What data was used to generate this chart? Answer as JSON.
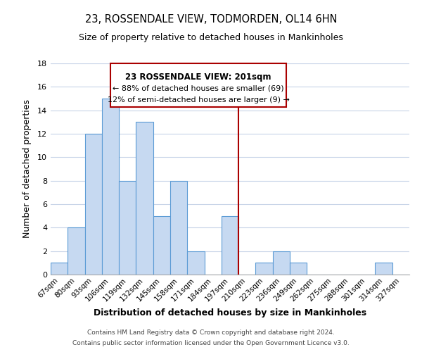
{
  "title": "23, ROSSENDALE VIEW, TODMORDEN, OL14 6HN",
  "subtitle": "Size of property relative to detached houses in Mankinholes",
  "xlabel": "Distribution of detached houses by size in Mankinholes",
  "ylabel": "Number of detached properties",
  "bin_labels": [
    "67sqm",
    "80sqm",
    "93sqm",
    "106sqm",
    "119sqm",
    "132sqm",
    "145sqm",
    "158sqm",
    "171sqm",
    "184sqm",
    "197sqm",
    "210sqm",
    "223sqm",
    "236sqm",
    "249sqm",
    "262sqm",
    "275sqm",
    "288sqm",
    "301sqm",
    "314sqm",
    "327sqm"
  ],
  "bar_heights": [
    1,
    4,
    12,
    15,
    8,
    13,
    5,
    8,
    2,
    0,
    5,
    0,
    1,
    2,
    1,
    0,
    0,
    0,
    0,
    1,
    0
  ],
  "bar_color": "#c6d9f1",
  "bar_edge_color": "#5b9bd5",
  "vline_x": 10.5,
  "vline_color": "#aa0000",
  "ylim": [
    0,
    18
  ],
  "yticks": [
    0,
    2,
    4,
    6,
    8,
    10,
    12,
    14,
    16,
    18
  ],
  "annotation_title": "23 ROSSENDALE VIEW: 201sqm",
  "annotation_line1": "← 88% of detached houses are smaller (69)",
  "annotation_line2": "12% of semi-detached houses are larger (9) →",
  "annotation_box_color": "#ffffff",
  "annotation_box_edge": "#aa0000",
  "footer1": "Contains HM Land Registry data © Crown copyright and database right 2024.",
  "footer2": "Contains public sector information licensed under the Open Government Licence v3.0.",
  "background_color": "#ffffff",
  "grid_color": "#c8d4e8"
}
